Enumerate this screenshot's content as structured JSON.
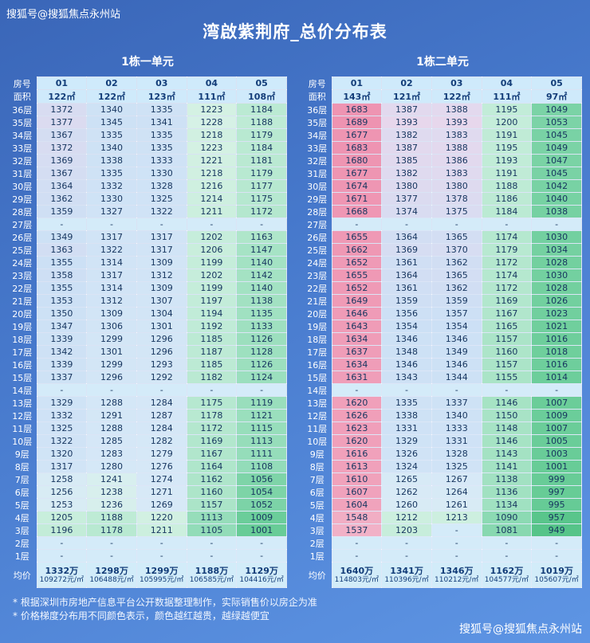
{
  "title": "湾啟紫荆府_总价分布表",
  "watermarks": {
    "top": "搜狐号@搜狐焦点永州站",
    "bottom": "搜狐号@搜狐焦点永州站"
  },
  "footnotes": [
    "* 根据深圳市房地产信息平台公开数据整理制作，实际销售价以房企为准",
    "* 价格梯度分布用不同颜色表示，颜色越红越贵，越绿越便宜"
  ],
  "colors": {
    "background_top": "#3a66b8",
    "background_bottom": "#5e95e4",
    "header_cell_bg": "#cfeafb",
    "avg_cell_bg": "#d2ecf9",
    "dash_cell_bg": "#d4ebf9",
    "cell_text": "#16355f",
    "header_text": "#123c78",
    "title_text": "#ffffff"
  },
  "heatmap": {
    "stops": [
      [
        949,
        "#56c489"
      ],
      [
        1000,
        "#68cc97"
      ],
      [
        1050,
        "#7bd3a6"
      ],
      [
        1105,
        "#92dcb8"
      ],
      [
        1155,
        "#aae4c7"
      ],
      [
        1195,
        "#c2ecd8"
      ],
      [
        1225,
        "#d5f1e4"
      ],
      [
        1245,
        "#d9eef2"
      ],
      [
        1268,
        "#d7e9f7"
      ],
      [
        1355,
        "#cce0f5"
      ],
      [
        1395,
        "#e8d7ec"
      ],
      [
        1465,
        "#f3c5d5"
      ],
      [
        1560,
        "#f1abc2"
      ],
      [
        1695,
        "#ee92b0"
      ]
    ]
  },
  "chart_data": {
    "type": "heatmap",
    "title": "湾啟紫荆府_总价分布表",
    "tables": [
      {
        "title": "1栋一单元",
        "room_label": "房号",
        "area_label": "面积",
        "avg_label": "均价",
        "columns": [
          "01",
          "02",
          "03",
          "04",
          "05"
        ],
        "areas": [
          "122㎡",
          "122㎡",
          "123㎡",
          "111㎡",
          "108㎡"
        ],
        "rows": [
          {
            "floor": "36层",
            "values": [
              1372,
              1340,
              1335,
              1223,
              1184
            ]
          },
          {
            "floor": "35层",
            "values": [
              1377,
              1345,
              1341,
              1228,
              1188
            ]
          },
          {
            "floor": "34层",
            "values": [
              1367,
              1335,
              1335,
              1218,
              1179
            ]
          },
          {
            "floor": "33层",
            "values": [
              1372,
              1340,
              1335,
              1223,
              1184
            ]
          },
          {
            "floor": "32层",
            "values": [
              1369,
              1338,
              1333,
              1221,
              1181
            ]
          },
          {
            "floor": "31层",
            "values": [
              1367,
              1335,
              1330,
              1218,
              1179
            ]
          },
          {
            "floor": "30层",
            "values": [
              1364,
              1332,
              1328,
              1216,
              1177
            ]
          },
          {
            "floor": "29层",
            "values": [
              1362,
              1330,
              1325,
              1214,
              1175
            ]
          },
          {
            "floor": "28层",
            "values": [
              1359,
              1327,
              1322,
              1211,
              1172
            ]
          },
          {
            "floor": "27层",
            "values": [
              "-",
              "-",
              "-",
              "-",
              "-"
            ]
          },
          {
            "floor": "26层",
            "values": [
              1349,
              1317,
              1317,
              1202,
              1163
            ]
          },
          {
            "floor": "25层",
            "values": [
              1363,
              1322,
              1317,
              1206,
              1147
            ]
          },
          {
            "floor": "24层",
            "values": [
              1355,
              1314,
              1309,
              1199,
              1140
            ]
          },
          {
            "floor": "23层",
            "values": [
              1358,
              1317,
              1312,
              1202,
              1142
            ]
          },
          {
            "floor": "22层",
            "values": [
              1355,
              1314,
              1309,
              1199,
              1140
            ]
          },
          {
            "floor": "21层",
            "values": [
              1353,
              1312,
              1307,
              1197,
              1138
            ]
          },
          {
            "floor": "20层",
            "values": [
              1350,
              1309,
              1304,
              1194,
              1135
            ]
          },
          {
            "floor": "19层",
            "values": [
              1347,
              1306,
              1301,
              1192,
              1133
            ]
          },
          {
            "floor": "18层",
            "values": [
              1339,
              1299,
              1296,
              1185,
              1126
            ]
          },
          {
            "floor": "17层",
            "values": [
              1342,
              1301,
              1296,
              1187,
              1128
            ]
          },
          {
            "floor": "16层",
            "values": [
              1339,
              1299,
              1293,
              1185,
              1126
            ]
          },
          {
            "floor": "15层",
            "values": [
              1337,
              1296,
              1292,
              1182,
              1124
            ]
          },
          {
            "floor": "14层",
            "values": [
              "-",
              "-",
              "-",
              "-",
              "-"
            ]
          },
          {
            "floor": "13层",
            "values": [
              1329,
              1288,
              1284,
              1175,
              1119
            ]
          },
          {
            "floor": "12层",
            "values": [
              1332,
              1291,
              1287,
              1178,
              1121
            ]
          },
          {
            "floor": "11层",
            "values": [
              1325,
              1288,
              1284,
              1172,
              1115
            ]
          },
          {
            "floor": "10层",
            "values": [
              1322,
              1285,
              1282,
              1169,
              1113
            ]
          },
          {
            "floor": "9层",
            "values": [
              1320,
              1283,
              1279,
              1167,
              1111
            ]
          },
          {
            "floor": "8层",
            "values": [
              1317,
              1280,
              1276,
              1164,
              1108
            ]
          },
          {
            "floor": "7层",
            "values": [
              1258,
              1241,
              1274,
              1162,
              1056
            ]
          },
          {
            "floor": "6层",
            "values": [
              1256,
              1238,
              1271,
              1160,
              1054
            ]
          },
          {
            "floor": "5层",
            "values": [
              1253,
              1236,
              1269,
              1157,
              1052
            ]
          },
          {
            "floor": "4层",
            "values": [
              1205,
              1188,
              1220,
              1113,
              1009
            ]
          },
          {
            "floor": "3层",
            "values": [
              1196,
              1178,
              1211,
              1105,
              1001
            ]
          },
          {
            "floor": "2层",
            "values": [
              "-",
              "-",
              "-",
              "-",
              "-"
            ]
          },
          {
            "floor": "1层",
            "values": [
              "-",
              "-",
              "-",
              "-",
              "-"
            ]
          }
        ],
        "avg": [
          [
            "1332万",
            "109272元/㎡"
          ],
          [
            "1298万",
            "106488元/㎡"
          ],
          [
            "1299万",
            "105995元/㎡"
          ],
          [
            "1188万",
            "106585元/㎡"
          ],
          [
            "1129万",
            "104416元/㎡"
          ]
        ]
      },
      {
        "title": "1栋二单元",
        "room_label": "房号",
        "area_label": "面积",
        "avg_label": "均价",
        "columns": [
          "01",
          "02",
          "03",
          "04",
          "05"
        ],
        "areas": [
          "143㎡",
          "121㎡",
          "122㎡",
          "111㎡",
          "97㎡"
        ],
        "rows": [
          {
            "floor": "36层",
            "values": [
              1683,
              1387,
              1388,
              1195,
              1049
            ]
          },
          {
            "floor": "35层",
            "values": [
              1689,
              1393,
              1393,
              1200,
              1053
            ]
          },
          {
            "floor": "34层",
            "values": [
              1677,
              1382,
              1383,
              1191,
              1045
            ]
          },
          {
            "floor": "33层",
            "values": [
              1683,
              1387,
              1388,
              1195,
              1049
            ]
          },
          {
            "floor": "32层",
            "values": [
              1680,
              1385,
              1386,
              1193,
              1047
            ]
          },
          {
            "floor": "31层",
            "values": [
              1677,
              1382,
              1383,
              1191,
              1045
            ]
          },
          {
            "floor": "30层",
            "values": [
              1674,
              1380,
              1380,
              1188,
              1042
            ]
          },
          {
            "floor": "29层",
            "values": [
              1671,
              1377,
              1378,
              1186,
              1040
            ]
          },
          {
            "floor": "28层",
            "values": [
              1668,
              1374,
              1375,
              1184,
              1038
            ]
          },
          {
            "floor": "27层",
            "values": [
              "-",
              "-",
              "-",
              "-",
              "-"
            ]
          },
          {
            "floor": "26层",
            "values": [
              1655,
              1364,
              1365,
              1174,
              1030
            ]
          },
          {
            "floor": "25层",
            "values": [
              1662,
              1369,
              1370,
              1179,
              1034
            ]
          },
          {
            "floor": "24层",
            "values": [
              1652,
              1361,
              1362,
              1172,
              1028
            ]
          },
          {
            "floor": "23层",
            "values": [
              1655,
              1364,
              1365,
              1174,
              1030
            ]
          },
          {
            "floor": "22层",
            "values": [
              1652,
              1361,
              1362,
              1172,
              1028
            ]
          },
          {
            "floor": "21层",
            "values": [
              1649,
              1359,
              1359,
              1169,
              1026
            ]
          },
          {
            "floor": "20层",
            "values": [
              1646,
              1356,
              1357,
              1167,
              1023
            ]
          },
          {
            "floor": "19层",
            "values": [
              1643,
              1354,
              1354,
              1165,
              1021
            ]
          },
          {
            "floor": "18层",
            "values": [
              1634,
              1346,
              1346,
              1157,
              1016
            ]
          },
          {
            "floor": "17层",
            "values": [
              1637,
              1348,
              1349,
              1160,
              1018
            ]
          },
          {
            "floor": "16层",
            "values": [
              1634,
              1346,
              1346,
              1157,
              1016
            ]
          },
          {
            "floor": "15层",
            "values": [
              1631,
              1343,
              1344,
              1155,
              1014
            ]
          },
          {
            "floor": "14层",
            "values": [
              "-",
              "-",
              "-",
              "-",
              "-"
            ]
          },
          {
            "floor": "13层",
            "values": [
              1620,
              1335,
              1337,
              1146,
              1007
            ]
          },
          {
            "floor": "12层",
            "values": [
              1626,
              1338,
              1340,
              1150,
              1009
            ]
          },
          {
            "floor": "11层",
            "values": [
              1623,
              1331,
              1333,
              1148,
              1007
            ]
          },
          {
            "floor": "10层",
            "values": [
              1620,
              1329,
              1331,
              1146,
              1005
            ]
          },
          {
            "floor": "9层",
            "values": [
              1616,
              1326,
              1328,
              1143,
              1003
            ]
          },
          {
            "floor": "8层",
            "values": [
              1613,
              1324,
              1325,
              1141,
              1001
            ]
          },
          {
            "floor": "7层",
            "values": [
              1610,
              1265,
              1267,
              1138,
              999
            ]
          },
          {
            "floor": "6层",
            "values": [
              1607,
              1262,
              1264,
              1136,
              997
            ]
          },
          {
            "floor": "5层",
            "values": [
              1604,
              1260,
              1261,
              1134,
              995
            ]
          },
          {
            "floor": "4层",
            "values": [
              1548,
              1212,
              1213,
              1090,
              957
            ]
          },
          {
            "floor": "3层",
            "values": [
              1537,
              1203,
              "-",
              1081,
              949
            ]
          },
          {
            "floor": "2层",
            "values": [
              "-",
              "-",
              "-",
              "-",
              "-"
            ]
          },
          {
            "floor": "1层",
            "values": [
              "-",
              "-",
              "-",
              "-",
              "-"
            ]
          }
        ],
        "avg": [
          [
            "1640万",
            "114803元/㎡"
          ],
          [
            "1341万",
            "110396元/㎡"
          ],
          [
            "1346万",
            "110212元/㎡"
          ],
          [
            "1162万",
            "104577元/㎡"
          ],
          [
            "1019万",
            "105607元/㎡"
          ]
        ]
      }
    ]
  }
}
